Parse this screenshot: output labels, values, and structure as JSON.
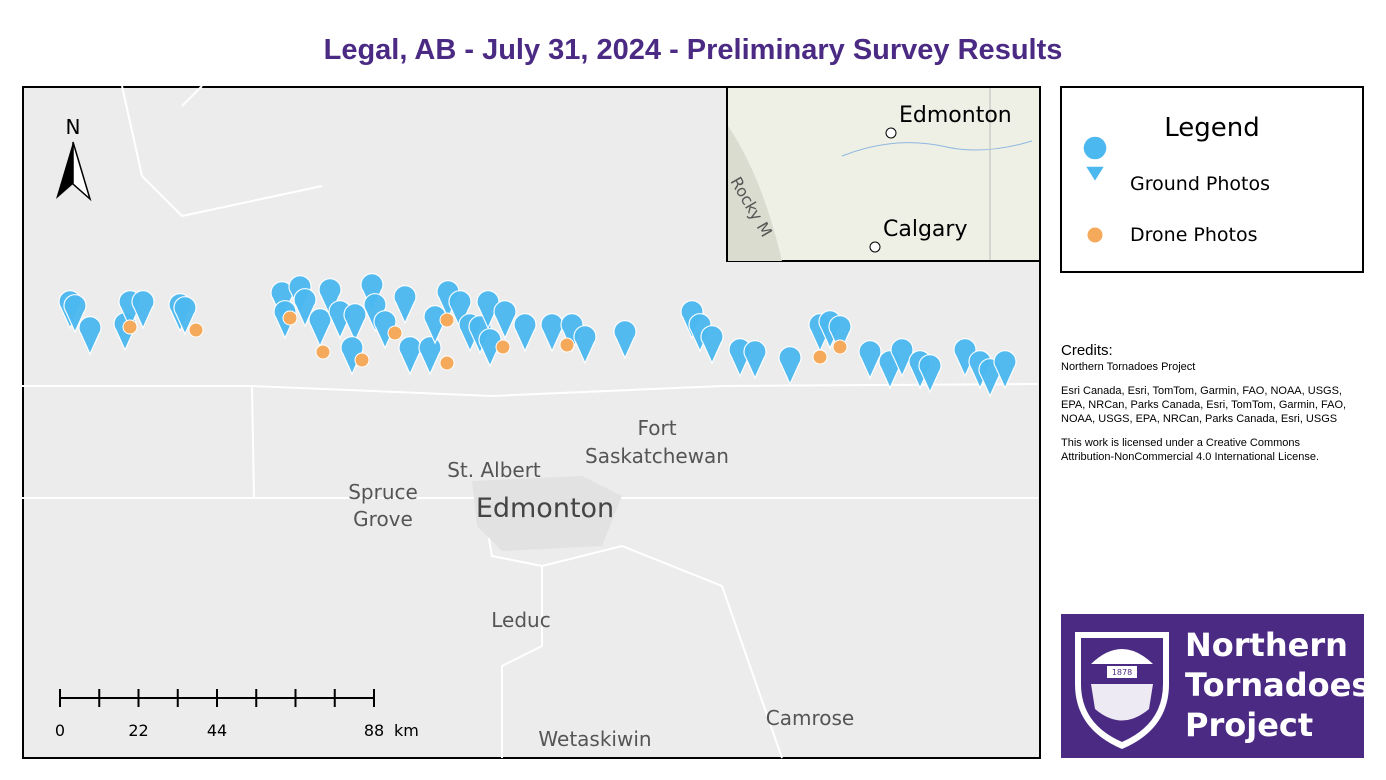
{
  "title": "Legal, AB - July 31, 2024 - Preliminary Survey Results",
  "map": {
    "north": "N",
    "places": [
      "Fort",
      "Saskatchewan",
      "St. Albert",
      "Spruce",
      "Grove",
      "Edmonton",
      "Leduc",
      "Wetaskiwin",
      "Camrose"
    ],
    "scale_bar": {
      "ticks": [
        0,
        22,
        44,
        88
      ],
      "unit": "km"
    }
  },
  "inset": {
    "places": [
      "Edmonton",
      "Calgary",
      "Rocky M"
    ]
  },
  "legend": {
    "title": "Legend",
    "items": [
      "Ground Photos",
      "Drone Photos"
    ]
  },
  "credits": {
    "heading": "Credits:",
    "author": "Northern Tornadoes Project",
    "sources": "Esri Canada, Esri, TomTom, Garmin, FAO, NOAA, USGS, EPA, NRCan, Parks Canada, Esri, TomTom, Garmin, FAO, NOAA, USGS, EPA, NRCan, Parks Canada, Esri, USGS",
    "license": "This work is licensed under a Creative Commons Attribution-NonCommercial 4.0 International License."
  },
  "logo": {
    "lines": [
      "Northern",
      "Tornadoes",
      "Project"
    ],
    "year": "1878"
  }
}
